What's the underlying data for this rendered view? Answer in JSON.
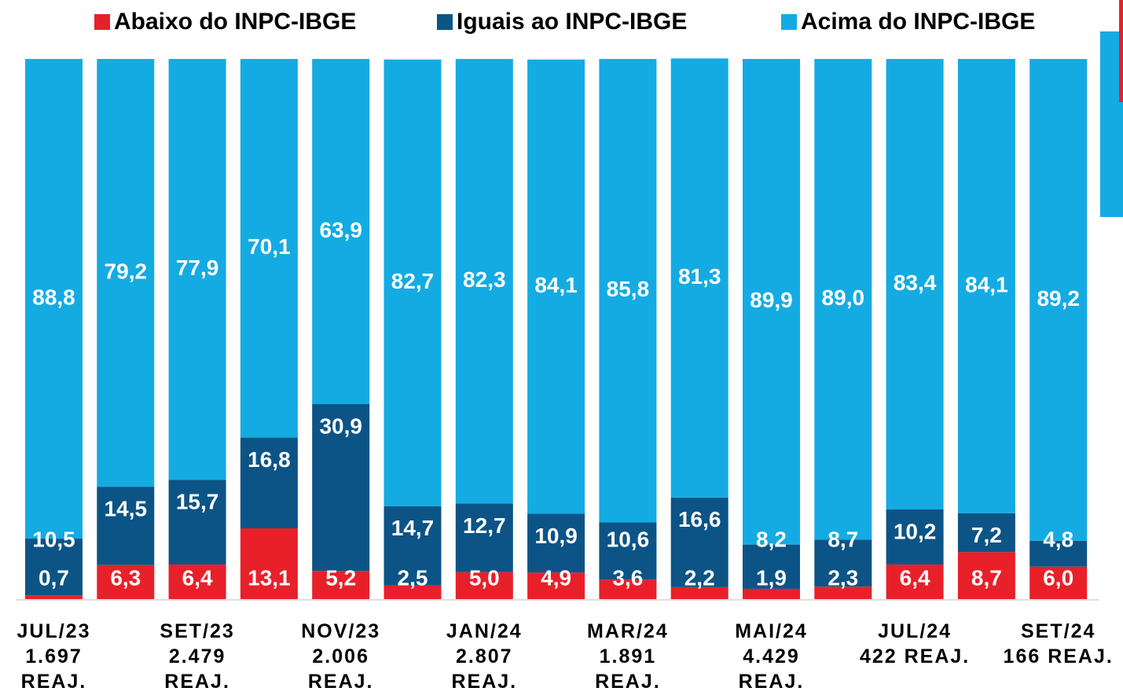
{
  "chart_data": {
    "type": "stacked_bar",
    "categories": [
      [
        "JUL/23",
        "1.697",
        "REAJ."
      ],
      null,
      [
        "SET/23",
        "2.479",
        "REAJ."
      ],
      null,
      [
        "NOV/23",
        "2.006",
        "REAJ."
      ],
      null,
      [
        "JAN/24",
        "2.807",
        "REAJ."
      ],
      null,
      [
        "MAR/24",
        "1.891",
        "REAJ."
      ],
      null,
      [
        "MAI/24",
        "4.429",
        "REAJ."
      ],
      null,
      [
        "JUL/24",
        "422 REAJ."
      ],
      null,
      [
        "SET/24",
        "166 REAJ."
      ]
    ],
    "series": [
      {
        "name": "Abaixo do INPC-IBGE",
        "color": "#e8202a",
        "values": [
          0.7,
          6.3,
          6.4,
          13.1,
          5.2,
          2.5,
          5.0,
          4.9,
          3.6,
          2.2,
          1.9,
          2.3,
          6.4,
          8.7,
          6.0
        ],
        "value_labels": [
          "0,7",
          "6,3",
          "6,4",
          "13,1",
          "5,2",
          "2,5",
          "5,0",
          "4,9",
          "3,6",
          "2,2",
          "1,9",
          "2,3",
          "6,4",
          "8,7",
          "6,0"
        ]
      },
      {
        "name": "Iguais ao INPC-IBGE",
        "color": "#0c5486",
        "values": [
          10.5,
          14.5,
          15.7,
          16.8,
          30.9,
          14.7,
          12.7,
          10.9,
          10.6,
          16.6,
          8.2,
          8.7,
          10.2,
          7.2,
          4.8
        ],
        "value_labels": [
          "10,5",
          "14,5",
          "15,7",
          "16,8",
          "30,9",
          "14,7",
          "12,7",
          "10,9",
          "10,6",
          "16,6",
          "8,2",
          "8,7",
          "10,2",
          "7,2",
          "4,8"
        ]
      },
      {
        "name": "Acima do INPC-IBGE",
        "color": "#14abe3",
        "values": [
          88.8,
          79.2,
          77.9,
          70.1,
          63.9,
          82.7,
          82.3,
          84.1,
          85.8,
          81.3,
          89.9,
          89.0,
          83.4,
          84.1,
          89.2
        ],
        "value_labels": [
          "88,8",
          "79,2",
          "77,9",
          "70,1",
          "63,9",
          "82,7",
          "82,3",
          "84,1",
          "85,8",
          "81,3",
          "89,9",
          "89,0",
          "83,4",
          "84,1",
          "89,2"
        ]
      }
    ],
    "ylim": [
      0,
      100
    ],
    "legend": "top"
  }
}
